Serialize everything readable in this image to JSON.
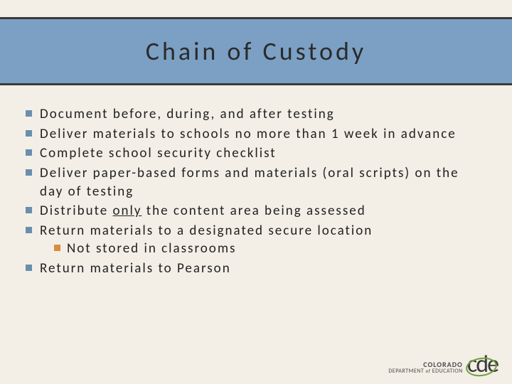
{
  "title": "Chain of Custody",
  "bullets": [
    {
      "text": "Document before, during, and after testing"
    },
    {
      "text": "Deliver materials to schools no more than 1 week in advance"
    },
    {
      "text": "Complete school security checklist"
    },
    {
      "text": "Deliver paper-based forms and materials (oral scripts) on the day of testing"
    },
    {
      "pre": "Distribute ",
      "u": "only",
      "post": " the content area being assessed"
    },
    {
      "text": "Return materials to a designated secure location",
      "sub": [
        {
          "text": "Not stored in classrooms"
        }
      ]
    },
    {
      "text": "Return materials to Pearson"
    }
  ],
  "logo": {
    "line1": "COLORADO",
    "line2_a": "DEPARTMENT",
    "line2_b": "of",
    "line2_c": "EDUCATION",
    "mark": "cde"
  },
  "colors": {
    "band": "#7ba0c4",
    "band_border": "#3a3a3a",
    "bg": "#f3efe6",
    "bullet_main": "#6b8eaf",
    "bullet_sub": "#d98b3f",
    "logo_ring": "#6fa03a"
  }
}
